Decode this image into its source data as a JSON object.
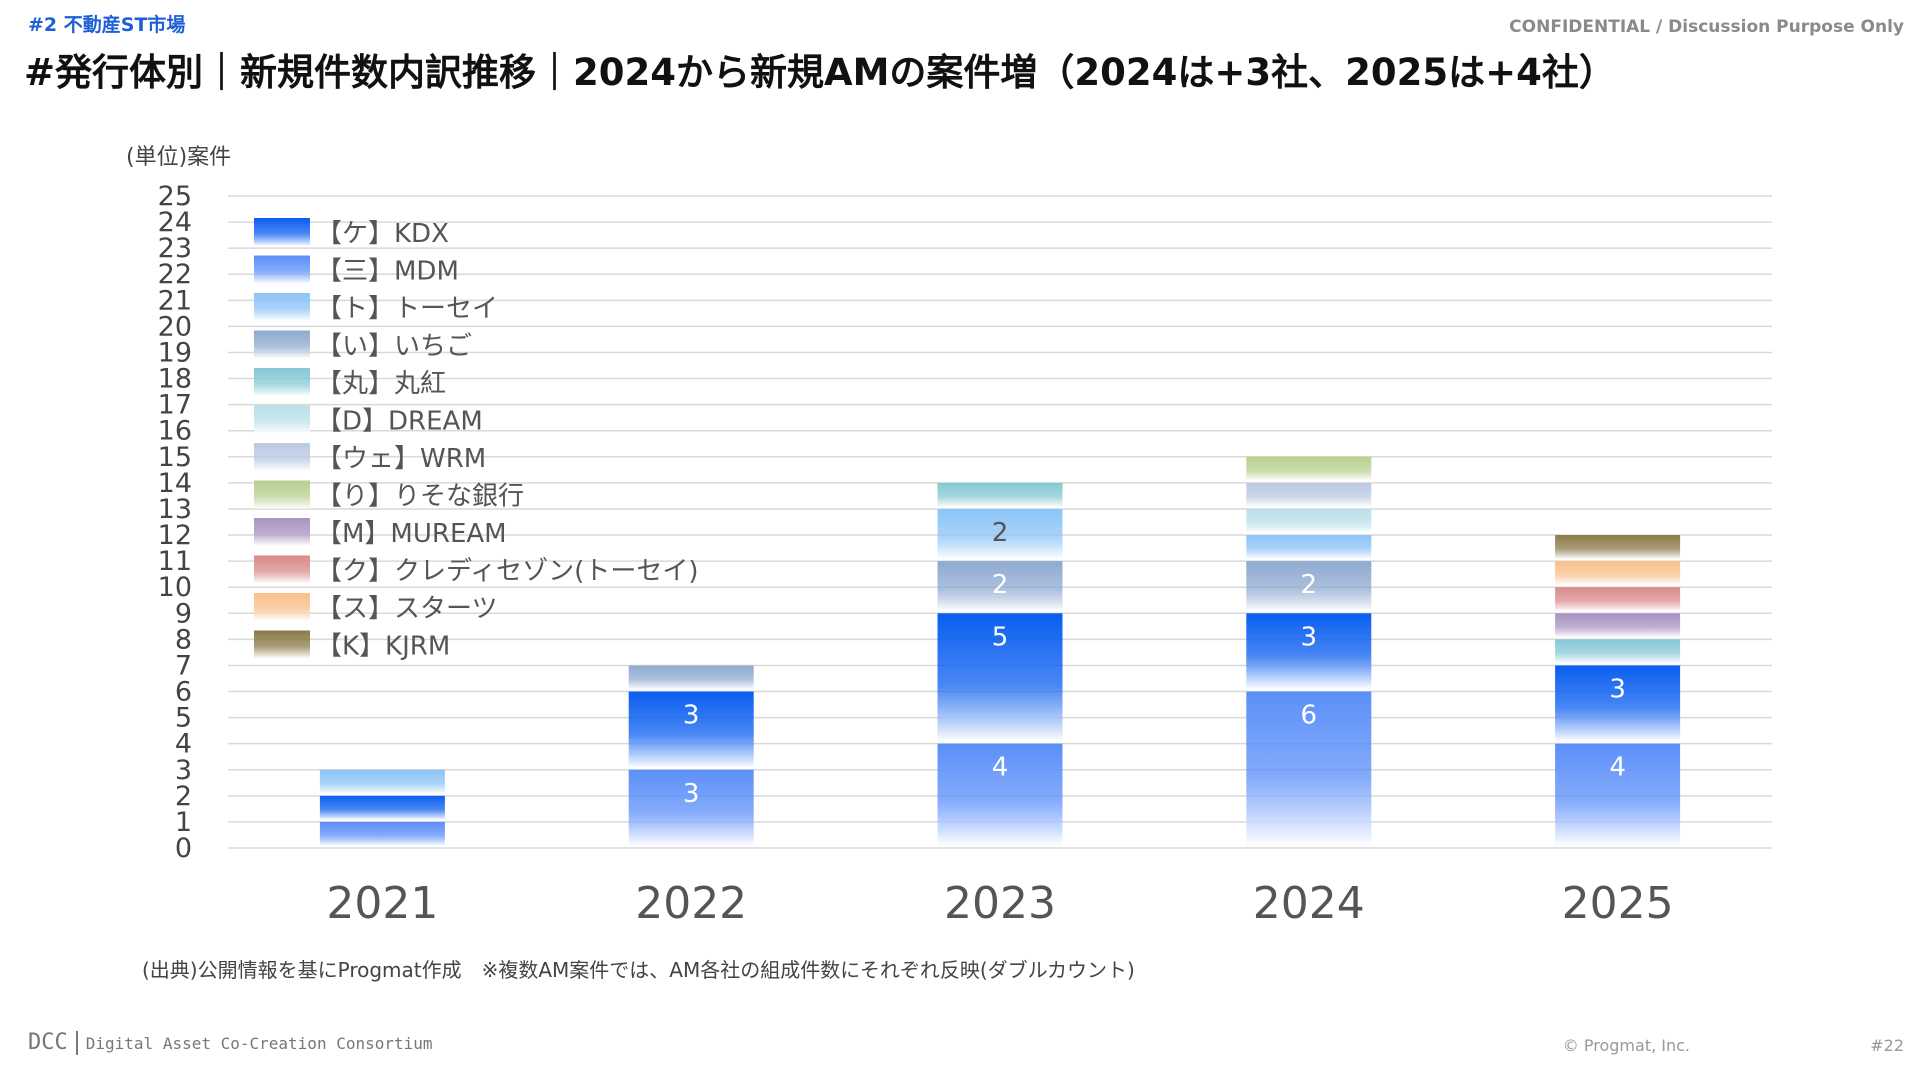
{
  "header": {
    "section": "#2 不動産ST市場",
    "confidential": "CONFIDENTIAL / Discussion Purpose Only",
    "title": "#発行体別｜新規件数内訳推移｜2024から新規AMの案件増（2024は+3社、2025は+4社）"
  },
  "footer": {
    "source_note": "(出典)公開情報を基にProgmat作成　※複数AM案件では、AM各社の組成件数にそれぞれ反映(ダブルカウント)",
    "logo_main": "DCC",
    "logo_sub": "Digital Asset Co-Creation Consortium",
    "copyright": "© Progmat, Inc.",
    "page": "#22"
  },
  "chart_data": {
    "type": "bar",
    "stacked": true,
    "unit_label": "(単位)案件",
    "categories": [
      "2021",
      "2022",
      "2023",
      "2024",
      "2025"
    ],
    "ylim": [
      0,
      25
    ],
    "yticks": [
      0,
      1,
      2,
      3,
      4,
      5,
      6,
      7,
      8,
      9,
      10,
      11,
      12,
      13,
      14,
      15,
      16,
      17,
      18,
      19,
      20,
      21,
      22,
      23,
      24,
      25
    ],
    "grid": true,
    "legend_position": "top-left",
    "series": [
      {
        "name": "【三】MDM",
        "color": "#5b8ff9",
        "values": [
          1,
          3,
          4,
          6,
          4
        ],
        "labels": [
          "",
          "3",
          "4",
          "6",
          "4"
        ]
      },
      {
        "name": "【ケ】KDX",
        "color": "#0a5ef0",
        "values": [
          1,
          3,
          5,
          3,
          3
        ],
        "labels": [
          "",
          "3",
          "5",
          "3",
          "3"
        ]
      },
      {
        "name": "【い】いちご",
        "color": "#8eaad0",
        "values": [
          0,
          1,
          2,
          2,
          0
        ],
        "labels": [
          "",
          "",
          "2",
          "2",
          ""
        ]
      },
      {
        "name": "【ト】トーセイ",
        "color": "#8cc4f7",
        "values": [
          1,
          0,
          2,
          1,
          0
        ],
        "labels": [
          "",
          "",
          "2",
          "",
          ""
        ]
      },
      {
        "name": "【丸】丸紅",
        "color": "#86c8d6",
        "values": [
          0,
          0,
          1,
          0,
          1
        ],
        "labels": [
          "",
          "",
          "",
          "",
          ""
        ]
      },
      {
        "name": "【D】DREAM",
        "color": "#b8e0ea",
        "values": [
          0,
          0,
          0,
          1,
          0
        ],
        "labels": [
          "",
          "",
          "",
          "",
          ""
        ]
      },
      {
        "name": "【ウェ】WRM",
        "color": "#b9c9e2",
        "values": [
          0,
          0,
          0,
          1,
          0
        ],
        "labels": [
          "",
          "",
          "",
          "",
          ""
        ]
      },
      {
        "name": "【り】りそな銀行",
        "color": "#b7d08e",
        "values": [
          0,
          0,
          0,
          1,
          0
        ],
        "labels": [
          "",
          "",
          "",
          "",
          ""
        ]
      },
      {
        "name": "【M】MUREAM",
        "color": "#a892c2",
        "values": [
          0,
          0,
          0,
          0,
          1
        ],
        "labels": [
          "",
          "",
          "",
          "",
          ""
        ]
      },
      {
        "name": "【ク】クレディセゾン(トーセイ)",
        "color": "#d98a8a",
        "values": [
          0,
          0,
          0,
          0,
          1
        ],
        "labels": [
          "",
          "",
          "",
          "",
          ""
        ]
      },
      {
        "name": "【ス】スターツ",
        "color": "#f8bf8a",
        "values": [
          0,
          0,
          0,
          0,
          1
        ],
        "labels": [
          "",
          "",
          "",
          "",
          ""
        ]
      },
      {
        "name": "【K】KJRM",
        "color": "#8c7a4a",
        "values": [
          0,
          0,
          0,
          0,
          1
        ],
        "labels": [
          "",
          "",
          "",
          "",
          ""
        ]
      }
    ],
    "legend_order": [
      "【ケ】KDX",
      "【三】MDM",
      "【ト】トーセイ",
      "【い】いちご",
      "【丸】丸紅",
      "【D】DREAM",
      "【ウェ】WRM",
      "【り】りそな銀行",
      "【M】MUREAM",
      "【ク】クレディセゾン(トーセイ)",
      "【ス】スターツ",
      "【K】KJRM"
    ]
  }
}
